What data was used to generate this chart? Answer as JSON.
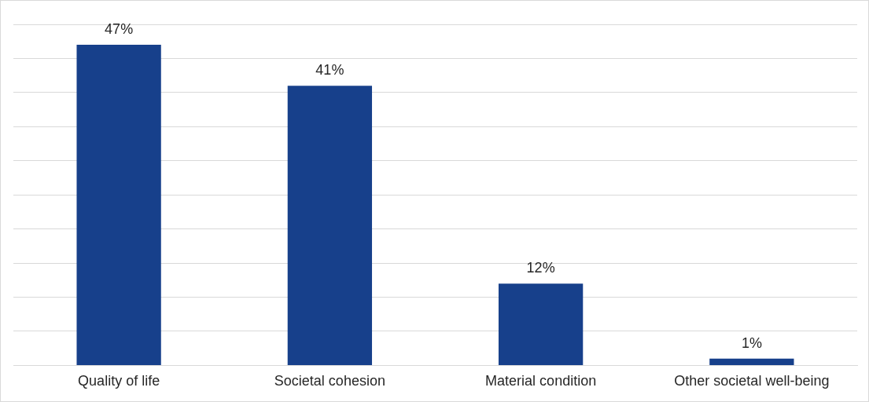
{
  "chart_data": {
    "type": "bar",
    "categories": [
      "Quality of life",
      "Societal cohesion",
      "Material condition",
      "Other societal well-being"
    ],
    "values": [
      47,
      41,
      12,
      1
    ],
    "color": "#17408b",
    "value_labels": [
      "47%",
      "41%",
      "12%",
      "1%"
    ],
    "ylim": [
      0,
      50
    ],
    "yticks": [
      0,
      5,
      10,
      15,
      20,
      25,
      30,
      35,
      40,
      45,
      50
    ],
    "tick_labels": "x",
    "grid": "y",
    "legend": false
  }
}
